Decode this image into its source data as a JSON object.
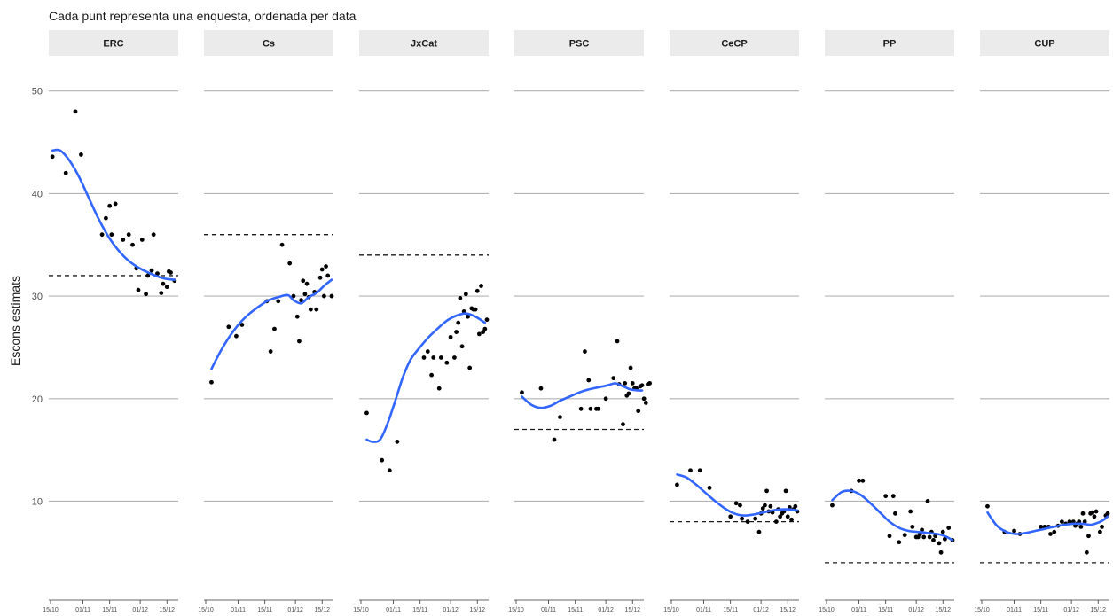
{
  "chart_data": {
    "type": "scatter",
    "subtitle": "Cada punt representa una enquesta, ordenada per data",
    "ylabel": "Escons estimats",
    "xlabel": "",
    "ylim": [
      2,
      53
    ],
    "yticks": [
      10,
      20,
      30,
      40,
      50
    ],
    "xticks": [
      "15/10",
      "01/11",
      "15/11",
      "01/12",
      "15/12"
    ],
    "x_range_days": [
      0,
      66
    ],
    "xtick_days": [
      0,
      17,
      31,
      47,
      61
    ],
    "grid": "horizontal",
    "smooth_color": "#3366ff",
    "reference_line_style": "dashed",
    "panels": [
      {
        "name": "ERC",
        "reference": 32,
        "smooth": [
          [
            1,
            44.2
          ],
          [
            5,
            44.2
          ],
          [
            10,
            43.2
          ],
          [
            15,
            41.6
          ],
          [
            20,
            39.6
          ],
          [
            25,
            37.6
          ],
          [
            30,
            35.9
          ],
          [
            35,
            34.6
          ],
          [
            40,
            33.6
          ],
          [
            45,
            32.9
          ],
          [
            50,
            32.4
          ],
          [
            55,
            32.0
          ],
          [
            60,
            31.7
          ],
          [
            65,
            31.6
          ]
        ],
        "points": [
          [
            1,
            43.6
          ],
          [
            8,
            42.0
          ],
          [
            13,
            48.0
          ],
          [
            16,
            43.8
          ],
          [
            27,
            36.0
          ],
          [
            29,
            37.6
          ],
          [
            31,
            38.8
          ],
          [
            32,
            36.0
          ],
          [
            34,
            39.0
          ],
          [
            38,
            35.5
          ],
          [
            41,
            36.0
          ],
          [
            43,
            35.0
          ],
          [
            45,
            32.7
          ],
          [
            46,
            30.6
          ],
          [
            48,
            35.5
          ],
          [
            50,
            30.2
          ],
          [
            51,
            32.0
          ],
          [
            53,
            32.5
          ],
          [
            54,
            36.0
          ],
          [
            56,
            32.2
          ],
          [
            58,
            30.3
          ],
          [
            59,
            31.2
          ],
          [
            61,
            30.9
          ],
          [
            62,
            32.4
          ],
          [
            63,
            32.3
          ],
          [
            65,
            31.5
          ]
        ]
      },
      {
        "name": "Cs",
        "reference": 36,
        "smooth": [
          [
            3,
            22.9
          ],
          [
            8,
            24.7
          ],
          [
            13,
            26.2
          ],
          [
            18,
            27.4
          ],
          [
            23,
            28.3
          ],
          [
            28,
            29.0
          ],
          [
            33,
            29.6
          ],
          [
            38,
            29.9
          ],
          [
            43,
            30.1
          ],
          [
            46,
            29.6
          ],
          [
            50,
            29.3
          ],
          [
            54,
            29.9
          ],
          [
            58,
            30.3
          ],
          [
            62,
            31.0
          ],
          [
            66,
            31.6
          ]
        ],
        "points": [
          [
            3,
            21.6
          ],
          [
            12,
            27.0
          ],
          [
            16,
            26.1
          ],
          [
            19,
            27.2
          ],
          [
            32,
            29.5
          ],
          [
            34,
            24.6
          ],
          [
            36,
            26.8
          ],
          [
            38,
            29.5
          ],
          [
            40,
            35.0
          ],
          [
            44,
            33.2
          ],
          [
            46,
            30.0
          ],
          [
            48,
            28.0
          ],
          [
            49,
            25.6
          ],
          [
            50,
            29.6
          ],
          [
            51,
            31.5
          ],
          [
            52,
            30.2
          ],
          [
            53,
            31.2
          ],
          [
            54,
            29.9
          ],
          [
            55,
            28.7
          ],
          [
            57,
            30.4
          ],
          [
            58,
            28.7
          ],
          [
            60,
            31.8
          ],
          [
            61,
            32.6
          ],
          [
            62,
            30.0
          ],
          [
            63,
            32.9
          ],
          [
            64,
            32.0
          ],
          [
            66,
            30.0
          ]
        ]
      },
      {
        "name": "JxCat",
        "reference": 34,
        "smooth": [
          [
            3,
            16.0
          ],
          [
            6,
            15.8
          ],
          [
            10,
            16.0
          ],
          [
            14,
            17.6
          ],
          [
            18,
            19.8
          ],
          [
            22,
            22.1
          ],
          [
            26,
            23.8
          ],
          [
            30,
            24.8
          ],
          [
            35,
            25.9
          ],
          [
            40,
            26.8
          ],
          [
            45,
            27.6
          ],
          [
            50,
            28.1
          ],
          [
            55,
            28.3
          ],
          [
            60,
            28.0
          ],
          [
            65,
            27.4
          ]
        ],
        "points": [
          [
            3,
            18.6
          ],
          [
            11,
            14.0
          ],
          [
            15,
            13.0
          ],
          [
            19,
            15.8
          ],
          [
            33,
            24.0
          ],
          [
            35,
            24.6
          ],
          [
            37,
            22.3
          ],
          [
            38,
            24.0
          ],
          [
            41,
            21.0
          ],
          [
            42,
            24.0
          ],
          [
            45,
            23.5
          ],
          [
            47,
            26.0
          ],
          [
            49,
            24.0
          ],
          [
            50,
            26.5
          ],
          [
            51,
            27.4
          ],
          [
            52,
            29.8
          ],
          [
            53,
            25.1
          ],
          [
            54,
            28.5
          ],
          [
            55,
            30.2
          ],
          [
            56,
            28.0
          ],
          [
            57,
            23.0
          ],
          [
            58,
            28.8
          ],
          [
            59,
            28.7
          ],
          [
            60,
            28.7
          ],
          [
            61,
            30.5
          ],
          [
            62,
            26.3
          ],
          [
            63,
            31.0
          ],
          [
            64,
            26.5
          ],
          [
            65,
            26.8
          ],
          [
            66,
            27.7
          ]
        ]
      },
      {
        "name": "PSC",
        "reference": 17,
        "smooth": [
          [
            3,
            20.2
          ],
          [
            8,
            19.4
          ],
          [
            13,
            19.1
          ],
          [
            18,
            19.3
          ],
          [
            23,
            19.8
          ],
          [
            28,
            20.2
          ],
          [
            33,
            20.6
          ],
          [
            38,
            20.9
          ],
          [
            43,
            21.1
          ],
          [
            48,
            21.3
          ],
          [
            52,
            21.5
          ],
          [
            56,
            21.2
          ],
          [
            60,
            20.9
          ],
          [
            64,
            20.8
          ],
          [
            66,
            20.8
          ]
        ],
        "points": [
          [
            3,
            20.6
          ],
          [
            13,
            21.0
          ],
          [
            20,
            16.0
          ],
          [
            23,
            18.2
          ],
          [
            34,
            19.0
          ],
          [
            36,
            24.6
          ],
          [
            38,
            21.8
          ],
          [
            39,
            19.0
          ],
          [
            42,
            19.0
          ],
          [
            43,
            19.0
          ],
          [
            47,
            20.0
          ],
          [
            51,
            22.0
          ],
          [
            53,
            25.6
          ],
          [
            54,
            21.4
          ],
          [
            56,
            17.5
          ],
          [
            57,
            21.5
          ],
          [
            58,
            20.3
          ],
          [
            59,
            20.5
          ],
          [
            60,
            23.0
          ],
          [
            61,
            21.5
          ],
          [
            62,
            21.0
          ],
          [
            63,
            21.0
          ],
          [
            64,
            18.8
          ],
          [
            65,
            21.2
          ],
          [
            66,
            21.3
          ],
          [
            67,
            20.0
          ],
          [
            68,
            19.6
          ],
          [
            69,
            21.4
          ],
          [
            70,
            21.5
          ]
        ]
      },
      {
        "name": "CeCP",
        "reference": 8,
        "smooth": [
          [
            3,
            12.6
          ],
          [
            8,
            12.3
          ],
          [
            13,
            11.6
          ],
          [
            18,
            10.8
          ],
          [
            23,
            10.0
          ],
          [
            28,
            9.3
          ],
          [
            33,
            8.8
          ],
          [
            38,
            8.6
          ],
          [
            43,
            8.7
          ],
          [
            48,
            8.9
          ],
          [
            53,
            9.1
          ],
          [
            58,
            9.2
          ],
          [
            62,
            9.2
          ],
          [
            66,
            9.1
          ]
        ],
        "points": [
          [
            3,
            11.6
          ],
          [
            10,
            13.0
          ],
          [
            15,
            13.0
          ],
          [
            20,
            11.3
          ],
          [
            31,
            8.5
          ],
          [
            34,
            9.8
          ],
          [
            36,
            9.6
          ],
          [
            37,
            8.3
          ],
          [
            40,
            8.0
          ],
          [
            44,
            8.3
          ],
          [
            46,
            7.0
          ],
          [
            47,
            8.8
          ],
          [
            48,
            9.3
          ],
          [
            49,
            9.6
          ],
          [
            50,
            11.0
          ],
          [
            51,
            9.0
          ],
          [
            52,
            9.5
          ],
          [
            53,
            8.9
          ],
          [
            55,
            8.0
          ],
          [
            56,
            9.2
          ],
          [
            57,
            8.5
          ],
          [
            58,
            8.8
          ],
          [
            59,
            9.0
          ],
          [
            60,
            11.0
          ],
          [
            61,
            8.5
          ],
          [
            62,
            9.4
          ],
          [
            63,
            8.2
          ],
          [
            64,
            9.2
          ],
          [
            65,
            9.5
          ],
          [
            66,
            9.0
          ]
        ]
      },
      {
        "name": "PP",
        "reference": 4,
        "smooth": [
          [
            3,
            10.1
          ],
          [
            8,
            10.9
          ],
          [
            13,
            11.0
          ],
          [
            18,
            10.6
          ],
          [
            23,
            9.8
          ],
          [
            28,
            8.9
          ],
          [
            33,
            8.0
          ],
          [
            38,
            7.4
          ],
          [
            43,
            7.1
          ],
          [
            48,
            7.0
          ],
          [
            53,
            6.9
          ],
          [
            58,
            6.8
          ],
          [
            62,
            6.6
          ],
          [
            66,
            6.2
          ]
        ],
        "points": [
          [
            3,
            9.6
          ],
          [
            13,
            11.0
          ],
          [
            17,
            12.0
          ],
          [
            19,
            12.0
          ],
          [
            31,
            10.5
          ],
          [
            33,
            6.6
          ],
          [
            35,
            10.5
          ],
          [
            36,
            8.8
          ],
          [
            38,
            6.0
          ],
          [
            41,
            6.7
          ],
          [
            44,
            9.0
          ],
          [
            45,
            7.5
          ],
          [
            47,
            6.5
          ],
          [
            48,
            6.5
          ],
          [
            49,
            6.8
          ],
          [
            50,
            7.2
          ],
          [
            51,
            6.5
          ],
          [
            53,
            10.0
          ],
          [
            54,
            6.5
          ],
          [
            55,
            7.0
          ],
          [
            56,
            6.2
          ],
          [
            57,
            6.6
          ],
          [
            59,
            5.9
          ],
          [
            60,
            5.0
          ],
          [
            61,
            7.0
          ],
          [
            62,
            6.3
          ],
          [
            64,
            7.4
          ],
          [
            66,
            6.2
          ]
        ]
      },
      {
        "name": "CUP",
        "reference": 4,
        "smooth": [
          [
            3,
            8.9
          ],
          [
            8,
            7.6
          ],
          [
            13,
            7.0
          ],
          [
            18,
            6.8
          ],
          [
            23,
            6.9
          ],
          [
            28,
            7.1
          ],
          [
            33,
            7.3
          ],
          [
            38,
            7.5
          ],
          [
            43,
            7.7
          ],
          [
            48,
            7.8
          ],
          [
            53,
            7.8
          ],
          [
            57,
            7.7
          ],
          [
            61,
            7.9
          ],
          [
            64,
            8.2
          ],
          [
            66,
            8.5
          ]
        ],
        "points": [
          [
            3,
            9.5
          ],
          [
            12,
            7.0
          ],
          [
            17,
            7.1
          ],
          [
            20,
            6.8
          ],
          [
            31,
            7.5
          ],
          [
            33,
            7.5
          ],
          [
            35,
            7.5
          ],
          [
            36,
            6.8
          ],
          [
            38,
            7.0
          ],
          [
            40,
            7.6
          ],
          [
            42,
            8.0
          ],
          [
            44,
            7.8
          ],
          [
            46,
            8.0
          ],
          [
            48,
            8.0
          ],
          [
            49,
            7.6
          ],
          [
            50,
            7.8
          ],
          [
            51,
            8.0
          ],
          [
            52,
            7.5
          ],
          [
            53,
            8.8
          ],
          [
            54,
            8.0
          ],
          [
            55,
            5.0
          ],
          [
            56,
            6.6
          ],
          [
            57,
            8.8
          ],
          [
            58,
            8.9
          ],
          [
            59,
            8.5
          ],
          [
            60,
            9.0
          ],
          [
            62,
            7.0
          ],
          [
            63,
            7.5
          ],
          [
            65,
            8.6
          ],
          [
            66,
            8.8
          ]
        ]
      }
    ]
  }
}
